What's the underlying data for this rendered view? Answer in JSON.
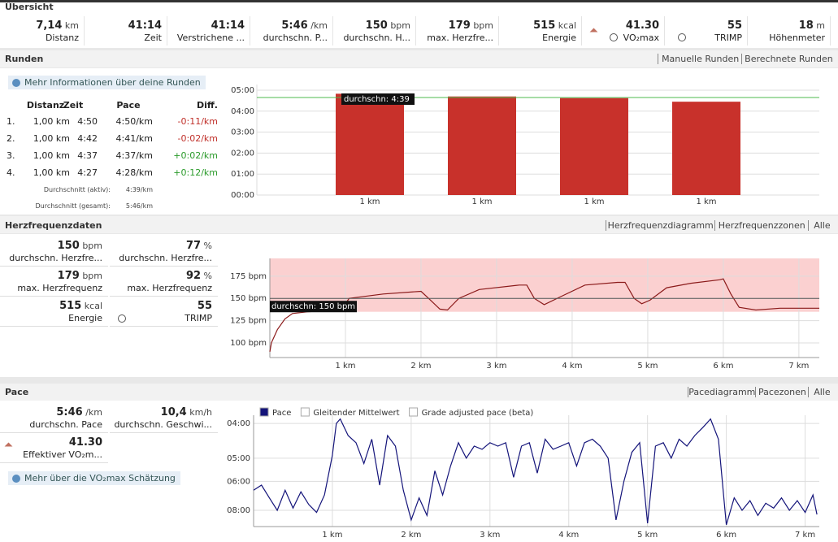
{
  "sections": {
    "overview": "Übersicht",
    "laps": "Runden",
    "hr": "Herzfrequenzdaten",
    "pace": "Pace"
  },
  "overview": [
    {
      "value": "7,14",
      "unit": "km",
      "label": "Distanz"
    },
    {
      "value": "41:14",
      "label": "Zeit"
    },
    {
      "value": "41:14",
      "label": "Verstrichene ..."
    },
    {
      "value": "5:46",
      "unit": "/km",
      "label": "durchschn. P..."
    },
    {
      "value": "150",
      "unit": "bpm",
      "label": "durchschn. H..."
    },
    {
      "value": "179",
      "unit": "bpm",
      "label": "max. Herzfre..."
    },
    {
      "value": "515",
      "unit": "kcal",
      "label": "Energie"
    },
    {
      "value": "41.30",
      "label": "VO₂max"
    },
    {
      "value": "55",
      "label": "TRIMP"
    },
    {
      "value": "18",
      "unit": "m",
      "label": "Höhenmeter"
    }
  ],
  "laps": {
    "tabs": [
      "Manuelle Runden",
      "Berechnete Runden"
    ],
    "info": "Mehr Informationen über deine Runden",
    "header": [
      "Distanz",
      "Zeit",
      "Pace",
      "Diff."
    ],
    "rows": [
      [
        "1.",
        "1,00 km",
        "4:50",
        "4:50/km",
        "-0:11/km"
      ],
      [
        "2.",
        "1,00 km",
        "4:42",
        "4:41/km",
        "-0:02/km"
      ],
      [
        "3.",
        "1,00 km",
        "4:37",
        "4:37/km",
        "+0:02/km"
      ],
      [
        "4.",
        "1,00 km",
        "4:27",
        "4:28/km",
        "+0:12/km"
      ]
    ],
    "summary": [
      [
        "Durchschnitt (aktiv):",
        "4:39/km"
      ],
      [
        "Durchschnitt (gesamt):",
        "5:46/km"
      ]
    ]
  },
  "hr": {
    "tabs": [
      "Herzfrequenzdiagramm",
      "Herzfrequenzzonen",
      "Alle"
    ],
    "stats": [
      {
        "value": "150",
        "unit": "bpm",
        "label": "durchschn. Herzfre..."
      },
      {
        "value": "77",
        "unit": "%",
        "label": "durchschn. Herzfre..."
      },
      {
        "value": "179",
        "unit": "bpm",
        "label": "max. Herzfrequenz"
      },
      {
        "value": "92",
        "unit": "%",
        "label": "max. Herzfrequenz"
      },
      {
        "value": "515",
        "unit": "kcal",
        "label": "Energie"
      },
      {
        "value": "55",
        "label": "TRIMP"
      }
    ]
  },
  "pace": {
    "tabs": [
      "Pacediagramm",
      "Pacezonen",
      "Alle"
    ],
    "stats": [
      {
        "value": "5:46",
        "unit": "/km",
        "label": "durchschn. Pace"
      },
      {
        "value": "10,4",
        "unit": "km/h",
        "label": "durchschn. Geschwi..."
      },
      {
        "value": "41.30",
        "label": "Effektiver VO₂m..."
      }
    ],
    "info": "Mehr über die VO₂max Schätzung"
  },
  "chart_data": [
    {
      "type": "bar",
      "categories": [
        "1 km",
        "1 km",
        "1 km",
        "1 km"
      ],
      "values": [
        4.83,
        4.7,
        4.62,
        4.45
      ],
      "color": "#c8312b",
      "ylim": [
        0,
        5.27
      ],
      "yticks": [
        {
          "value": 0,
          "label": "00:00"
        },
        {
          "value": 1,
          "label": "01:00"
        },
        {
          "value": 2,
          "label": "02:00"
        },
        {
          "value": 3,
          "label": "03:00"
        },
        {
          "value": 4,
          "label": "04:00"
        },
        {
          "value": 5,
          "label": "05:00"
        }
      ],
      "average": 4.65,
      "average_label": "durchschn: 4:39",
      "average_color": "#4cb84c",
      "grid": true
    },
    {
      "type": "line",
      "x": [
        0,
        0.02,
        0.1,
        0.2,
        0.3,
        0.5,
        0.7,
        0.95,
        1.05,
        1.5,
        2.0,
        2.1,
        2.25,
        2.35,
        2.5,
        2.77,
        3.3,
        3.4,
        3.5,
        3.63,
        3.85,
        4.17,
        4.6,
        4.7,
        4.82,
        4.92,
        5.03,
        5.25,
        5.57,
        5.95,
        6.0,
        6.1,
        6.21,
        6.43,
        6.75,
        7.27
      ],
      "values": [
        90,
        100,
        115,
        127,
        133,
        135,
        136,
        138,
        150,
        155,
        158,
        150,
        138,
        137,
        150,
        160,
        165,
        165,
        150,
        143,
        152,
        165,
        168,
        168,
        150,
        144,
        148,
        162,
        167,
        171,
        172,
        155,
        140,
        137,
        139,
        139
      ],
      "color": "#8b1a1a",
      "xlim": [
        0,
        7.27
      ],
      "ylim": [
        83.5,
        195
      ],
      "xticks": [
        {
          "value": 1,
          "label": "1 km"
        },
        {
          "value": 2,
          "label": "2 km"
        },
        {
          "value": 3,
          "label": "3 km"
        },
        {
          "value": 4,
          "label": "4 km"
        },
        {
          "value": 5,
          "label": "5 km"
        },
        {
          "value": 6,
          "label": "6 km"
        },
        {
          "value": 7,
          "label": "7 km"
        }
      ],
      "yticks": [
        {
          "value": 100,
          "label": "100 bpm"
        },
        {
          "value": 125,
          "label": "125 bpm"
        },
        {
          "value": 150,
          "label": "150 bpm"
        },
        {
          "value": 175,
          "label": "175 bpm"
        }
      ],
      "average": 150,
      "average_label": "durchschn: 150 bpm",
      "grid": true
    },
    {
      "type": "line",
      "scale": "reciprocal",
      "x": [
        0,
        0.1,
        0.2,
        0.3,
        0.4,
        0.5,
        0.6,
        0.7,
        0.8,
        0.9,
        1.0,
        1.05,
        1.1,
        1.2,
        1.3,
        1.4,
        1.5,
        1.6,
        1.7,
        1.8,
        1.9,
        2.0,
        2.1,
        2.2,
        2.3,
        2.4,
        2.5,
        2.6,
        2.7,
        2.8,
        2.9,
        3.0,
        3.1,
        3.2,
        3.3,
        3.4,
        3.5,
        3.6,
        3.7,
        3.8,
        3.9,
        4.0,
        4.1,
        4.2,
        4.3,
        4.4,
        4.5,
        4.6,
        4.7,
        4.8,
        4.9,
        5.0,
        5.1,
        5.2,
        5.3,
        5.4,
        5.5,
        5.6,
        5.7,
        5.8,
        5.9,
        6.0,
        6.1,
        6.2,
        6.3,
        6.4,
        6.5,
        6.6,
        6.7,
        6.8,
        6.9,
        7.0,
        7.1,
        7.15
      ],
      "values": [
        6.5,
        6.2,
        7.0,
        8.0,
        6.5,
        7.8,
        6.6,
        7.5,
        8.2,
        6.8,
        4.9,
        4.0,
        3.9,
        4.3,
        4.5,
        5.2,
        4.4,
        6.2,
        4.3,
        4.6,
        6.5,
        9.0,
        7.0,
        8.5,
        5.5,
        6.8,
        5.3,
        4.5,
        5.0,
        4.6,
        4.7,
        4.5,
        4.6,
        4.5,
        5.8,
        4.6,
        4.5,
        5.6,
        4.4,
        4.7,
        4.6,
        4.5,
        5.3,
        4.5,
        4.4,
        4.6,
        5.0,
        9.0,
        6.0,
        4.8,
        4.5,
        9.4,
        4.6,
        4.5,
        5.0,
        4.4,
        4.6,
        4.3,
        4.1,
        3.9,
        4.4,
        9.6,
        7.0,
        8.0,
        7.2,
        8.5,
        7.4,
        7.8,
        7.0,
        8.0,
        7.2,
        8.2,
        6.8,
        8.4
      ],
      "color": "#14147a",
      "xlim": [
        0,
        7.18
      ],
      "ylim": [
        9.84,
        3.82
      ],
      "xticks": [
        {
          "value": 1,
          "label": "1 km"
        },
        {
          "value": 2,
          "label": "2 km"
        },
        {
          "value": 3,
          "label": "3 km"
        },
        {
          "value": 4,
          "label": "4 km"
        },
        {
          "value": 5,
          "label": "5 km"
        },
        {
          "value": 6,
          "label": "6 km"
        },
        {
          "value": 7,
          "label": "7 km"
        }
      ],
      "yticks": [
        {
          "value": 4,
          "label": "04:00"
        },
        {
          "value": 5,
          "label": "05:00"
        },
        {
          "value": 6,
          "label": "06:00"
        },
        {
          "value": 8,
          "label": "08:00"
        }
      ],
      "legend": [
        {
          "name": "Pace",
          "color": "#14147a"
        },
        {
          "name": "Gleitender Mittelwert",
          "color": "#ffffff"
        },
        {
          "name": "Grade adjusted pace (beta)",
          "color": "#ffffff"
        }
      ],
      "grid": true
    }
  ]
}
